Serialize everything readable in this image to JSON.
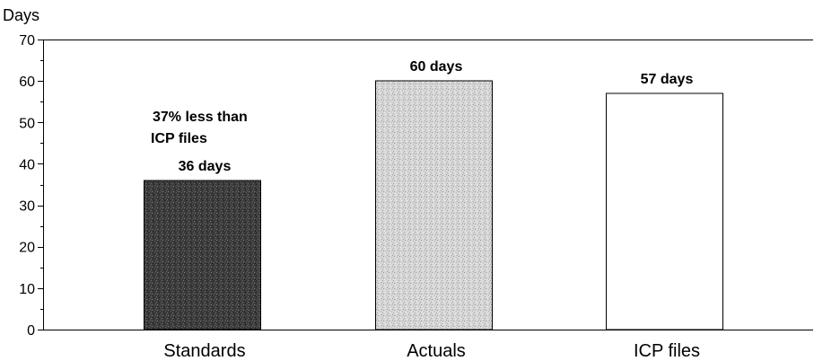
{
  "chart_data": {
    "type": "bar",
    "categories": [
      "Standards",
      "Actuals",
      "ICP files"
    ],
    "values": [
      36,
      60,
      57
    ],
    "data_labels": [
      "36 days",
      "60 days",
      "57 days"
    ],
    "ylabel": "Days",
    "xlabel": "",
    "ylim": [
      0,
      70
    ],
    "yticks": [
      0,
      10,
      20,
      30,
      40,
      50,
      60,
      70
    ],
    "annotation": {
      "lines": [
        "37% less than",
        "ICP files"
      ]
    },
    "bar_colors": [
      "#3c3c3c",
      "#d6d6d6",
      "#ffffff"
    ],
    "edge_color": "#000000",
    "grid": false,
    "legend": "none"
  }
}
